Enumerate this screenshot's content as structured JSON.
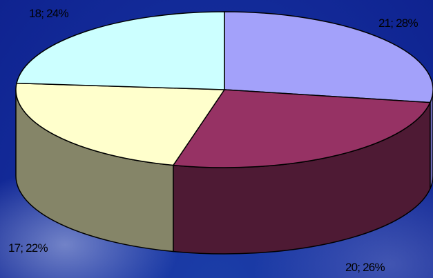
{
  "chart_data": {
    "type": "pie",
    "title": "",
    "slices": [
      {
        "value": 21,
        "label": "21; 28%",
        "top_color": "#a3a1fa",
        "side_color": "#6e6cb8"
      },
      {
        "value": 20,
        "label": "20; 26%",
        "top_color": "#963264",
        "side_color": "#4e1a34"
      },
      {
        "value": 17,
        "label": "17; 22%",
        "top_color": "#ffffcc",
        "side_color": "#858568"
      },
      {
        "value": 18,
        "label": "18; 24%",
        "top_color": "#ccffff",
        "side_color": "#8aacac"
      }
    ],
    "style": "3d-pie"
  },
  "colors": {
    "background": "#1631a0",
    "outline": "#000000"
  }
}
